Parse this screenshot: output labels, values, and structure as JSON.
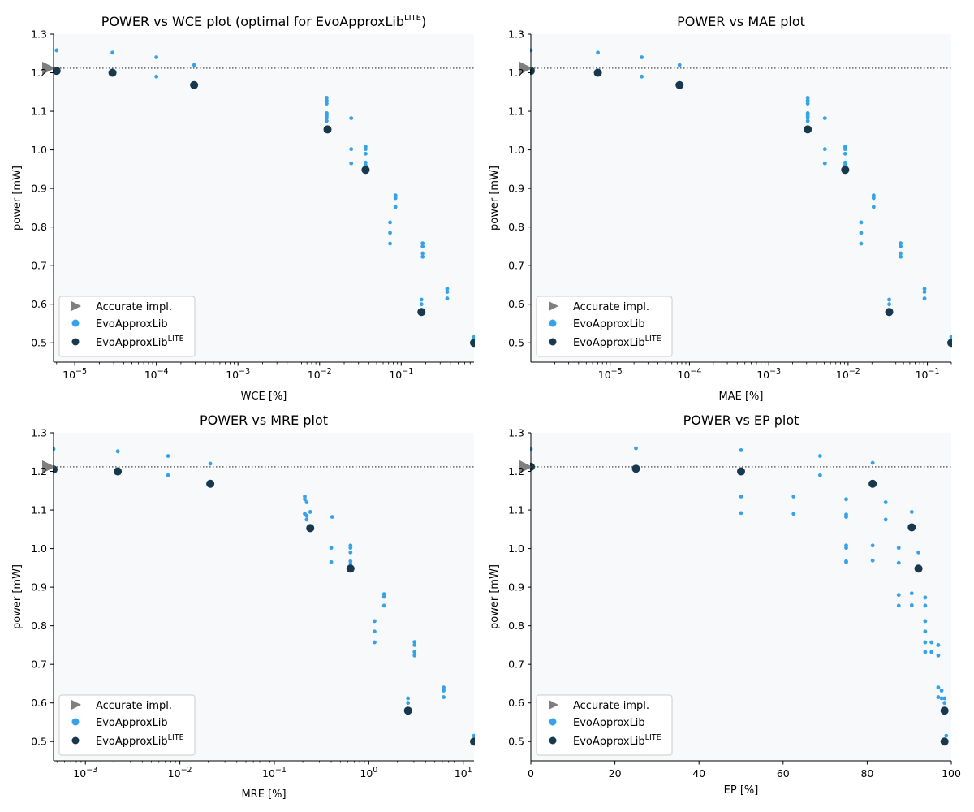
{
  "colors": {
    "accurate": "#7f7f7f",
    "library": "#35a2ea",
    "lite": "#17384d",
    "plot_bg": "#f7f9fb",
    "reference_line": "#666666"
  },
  "legend": {
    "accurate": "Accurate impl.",
    "library": "EvoApproxLib",
    "lite": "EvoApproxLib",
    "lite_sup": "LITE"
  },
  "chart_data": [
    {
      "id": "wce",
      "type": "scatter",
      "title": "POWER vs WCE plot (optimal for EvoApproxLib",
      "title_sup": "LITE",
      "title_tail": ")",
      "xlabel": "WCE [%]",
      "ylabel": "power [mW]",
      "xscale": "log",
      "xlim": [
        5.5e-06,
        0.78
      ],
      "ylim": [
        0.45,
        1.3
      ],
      "xticks": [
        1e-05,
        0.0001,
        0.001,
        0.01,
        0.1
      ],
      "xtick_labels": [
        [
          "10",
          "−5"
        ],
        [
          "10",
          "−4"
        ],
        [
          "10",
          "−3"
        ],
        [
          "10",
          "−2"
        ],
        [
          "10",
          "−1"
        ]
      ],
      "yticks": [
        "0.5",
        "0.6",
        "0.7",
        "0.8",
        "0.9",
        "1.0",
        "1.1",
        "1.2",
        "1.3"
      ],
      "reference_power": 1.212,
      "library": [
        [
          6e-06,
          1.258
        ],
        [
          2.9e-05,
          1.252
        ],
        [
          0.0001,
          1.24
        ],
        [
          0.0001,
          1.19
        ],
        [
          0.00029,
          1.22
        ],
        [
          0.0122,
          1.135
        ],
        [
          0.0122,
          1.128
        ],
        [
          0.0122,
          1.12
        ],
        [
          0.0122,
          1.095
        ],
        [
          0.0122,
          1.09
        ],
        [
          0.0122,
          1.085
        ],
        [
          0.0122,
          1.075
        ],
        [
          0.0244,
          1.082
        ],
        [
          0.0244,
          1.002
        ],
        [
          0.0244,
          0.965
        ],
        [
          0.0366,
          1.008
        ],
        [
          0.0366,
          1.002
        ],
        [
          0.0366,
          0.99
        ],
        [
          0.0366,
          0.967
        ],
        [
          0.0366,
          0.96
        ],
        [
          0.085,
          0.882
        ],
        [
          0.085,
          0.875
        ],
        [
          0.085,
          0.852
        ],
        [
          0.073,
          0.812
        ],
        [
          0.073,
          0.785
        ],
        [
          0.073,
          0.757
        ],
        [
          0.183,
          0.758
        ],
        [
          0.183,
          0.75
        ],
        [
          0.183,
          0.732
        ],
        [
          0.183,
          0.723
        ],
        [
          0.177,
          0.612
        ],
        [
          0.177,
          0.6
        ],
        [
          0.366,
          0.64
        ],
        [
          0.366,
          0.632
        ],
        [
          0.366,
          0.615
        ],
        [
          0.78,
          0.515
        ]
      ],
      "lite": [
        [
          6e-06,
          1.205
        ],
        [
          2.9e-05,
          1.2
        ],
        [
          0.00029,
          1.168
        ],
        [
          0.0125,
          1.053
        ],
        [
          0.0366,
          0.948
        ],
        [
          0.177,
          0.58
        ],
        [
          0.78,
          0.5
        ]
      ]
    },
    {
      "id": "mae",
      "type": "scatter",
      "title": "POWER vs MAE plot",
      "xlabel": "MAE [%]",
      "ylabel": "power [mW]",
      "xscale": "log",
      "xlim": [
        1e-06,
        0.2
      ],
      "ylim": [
        0.45,
        1.3
      ],
      "xticks": [
        1e-05,
        0.0001,
        0.001,
        0.01,
        0.1
      ],
      "xtick_labels": [
        [
          "10",
          "−5"
        ],
        [
          "10",
          "−4"
        ],
        [
          "10",
          "−3"
        ],
        [
          "10",
          "−2"
        ],
        [
          "10",
          "−1"
        ]
      ],
      "yticks": [
        "0.5",
        "0.6",
        "0.7",
        "0.8",
        "0.9",
        "1.0",
        "1.1",
        "1.2",
        "1.3"
      ],
      "reference_power": 1.212,
      "library": [
        [
          1e-06,
          1.258
        ],
        [
          7e-06,
          1.252
        ],
        [
          2.5e-05,
          1.24
        ],
        [
          2.5e-05,
          1.19
        ],
        [
          7.5e-05,
          1.22
        ],
        [
          0.0031,
          1.135
        ],
        [
          0.0031,
          1.128
        ],
        [
          0.0031,
          1.12
        ],
        [
          0.0031,
          1.095
        ],
        [
          0.0031,
          1.09
        ],
        [
          0.0031,
          1.085
        ],
        [
          0.0031,
          1.075
        ],
        [
          0.0051,
          1.082
        ],
        [
          0.0051,
          1.002
        ],
        [
          0.0051,
          0.965
        ],
        [
          0.0092,
          1.008
        ],
        [
          0.0092,
          1.002
        ],
        [
          0.0092,
          0.99
        ],
        [
          0.0092,
          0.967
        ],
        [
          0.0092,
          0.96
        ],
        [
          0.021,
          0.882
        ],
        [
          0.021,
          0.875
        ],
        [
          0.021,
          0.852
        ],
        [
          0.0146,
          0.812
        ],
        [
          0.0146,
          0.785
        ],
        [
          0.0146,
          0.757
        ],
        [
          0.046,
          0.758
        ],
        [
          0.046,
          0.75
        ],
        [
          0.046,
          0.732
        ],
        [
          0.046,
          0.723
        ],
        [
          0.033,
          0.612
        ],
        [
          0.033,
          0.6
        ],
        [
          0.092,
          0.64
        ],
        [
          0.092,
          0.632
        ],
        [
          0.092,
          0.615
        ],
        [
          0.2,
          0.515
        ]
      ],
      "lite": [
        [
          1e-06,
          1.205
        ],
        [
          7e-06,
          1.2
        ],
        [
          7.5e-05,
          1.168
        ],
        [
          0.0031,
          1.053
        ],
        [
          0.0092,
          0.948
        ],
        [
          0.033,
          0.58
        ],
        [
          0.2,
          0.5
        ]
      ]
    },
    {
      "id": "mre",
      "type": "scatter",
      "title": "POWER vs MRE plot",
      "xlabel": "MRE [%]",
      "ylabel": "power [mW]",
      "xscale": "log",
      "xlim": [
        0.00046,
        13
      ],
      "ylim": [
        0.45,
        1.3
      ],
      "xticks": [
        0.001,
        0.01,
        0.1,
        1,
        10
      ],
      "xtick_labels": [
        [
          "10",
          "−3"
        ],
        [
          "10",
          "−2"
        ],
        [
          "10",
          "−1"
        ],
        [
          "10",
          "0"
        ],
        [
          "10",
          "1"
        ]
      ],
      "yticks": [
        "0.5",
        "0.6",
        "0.7",
        "0.8",
        "0.9",
        "1.0",
        "1.1",
        "1.2",
        "1.3"
      ],
      "reference_power": 1.212,
      "library": [
        [
          0.00046,
          1.258
        ],
        [
          0.0022,
          1.252
        ],
        [
          0.0075,
          1.24
        ],
        [
          0.0075,
          1.19
        ],
        [
          0.021,
          1.22
        ],
        [
          0.21,
          1.135
        ],
        [
          0.21,
          1.128
        ],
        [
          0.22,
          1.12
        ],
        [
          0.24,
          1.095
        ],
        [
          0.21,
          1.09
        ],
        [
          0.22,
          1.085
        ],
        [
          0.22,
          1.075
        ],
        [
          0.41,
          1.082
        ],
        [
          0.4,
          1.002
        ],
        [
          0.4,
          0.965
        ],
        [
          0.64,
          1.008
        ],
        [
          0.64,
          1.002
        ],
        [
          0.64,
          0.99
        ],
        [
          0.64,
          0.967
        ],
        [
          0.64,
          0.96
        ],
        [
          1.45,
          0.882
        ],
        [
          1.45,
          0.875
        ],
        [
          1.45,
          0.852
        ],
        [
          1.15,
          0.812
        ],
        [
          1.15,
          0.785
        ],
        [
          1.15,
          0.757
        ],
        [
          3.05,
          0.758
        ],
        [
          3.05,
          0.75
        ],
        [
          3.05,
          0.732
        ],
        [
          3.05,
          0.723
        ],
        [
          2.6,
          0.612
        ],
        [
          2.6,
          0.6
        ],
        [
          6.2,
          0.64
        ],
        [
          6.2,
          0.632
        ],
        [
          6.2,
          0.615
        ],
        [
          13,
          0.515
        ]
      ],
      "lite": [
        [
          0.00046,
          1.205
        ],
        [
          0.0022,
          1.2
        ],
        [
          0.021,
          1.168
        ],
        [
          0.24,
          1.053
        ],
        [
          0.64,
          0.948
        ],
        [
          2.6,
          0.58
        ],
        [
          13,
          0.5
        ]
      ]
    },
    {
      "id": "ep",
      "type": "scatter",
      "title": "POWER vs EP plot",
      "xlabel": "EP [%]",
      "ylabel": "power [mW]",
      "xscale": "linear",
      "xlim": [
        0,
        100
      ],
      "ylim": [
        0.45,
        1.3
      ],
      "xticks": [
        0,
        20,
        40,
        60,
        80,
        100
      ],
      "xtick_labels": [
        [
          "0",
          ""
        ],
        [
          "20",
          ""
        ],
        [
          "40",
          ""
        ],
        [
          "60",
          ""
        ],
        [
          "80",
          ""
        ],
        [
          "100",
          ""
        ]
      ],
      "yticks": [
        "0.5",
        "0.6",
        "0.7",
        "0.8",
        "0.9",
        "1.0",
        "1.1",
        "1.2",
        "1.3"
      ],
      "reference_power": 1.212,
      "library": [
        [
          0,
          1.258
        ],
        [
          25,
          1.26
        ],
        [
          50,
          1.255
        ],
        [
          50,
          1.135
        ],
        [
          50,
          1.092
        ],
        [
          62.5,
          1.135
        ],
        [
          62.5,
          1.09
        ],
        [
          68.8,
          1.24
        ],
        [
          68.8,
          1.19
        ],
        [
          75,
          1.128
        ],
        [
          75,
          1.088
        ],
        [
          75,
          1.082
        ],
        [
          75,
          1.008
        ],
        [
          75,
          1.002
        ],
        [
          75,
          0.967
        ],
        [
          75,
          0.965
        ],
        [
          81.3,
          1.222
        ],
        [
          81.3,
          1.008
        ],
        [
          81.3,
          0.969
        ],
        [
          84.4,
          1.12
        ],
        [
          84.4,
          1.075
        ],
        [
          87.5,
          1.002
        ],
        [
          87.5,
          0.963
        ],
        [
          87.5,
          0.88
        ],
        [
          87.5,
          0.852
        ],
        [
          90.6,
          1.095
        ],
        [
          90.6,
          0.884
        ],
        [
          90.6,
          0.853
        ],
        [
          92.2,
          0.99
        ],
        [
          93.8,
          0.873
        ],
        [
          93.8,
          0.852
        ],
        [
          93.8,
          0.812
        ],
        [
          93.8,
          0.785
        ],
        [
          93.8,
          0.757
        ],
        [
          93.8,
          0.732
        ],
        [
          95.3,
          0.757
        ],
        [
          95.3,
          0.732
        ],
        [
          96.9,
          0.75
        ],
        [
          96.9,
          0.723
        ],
        [
          96.9,
          0.64
        ],
        [
          96.9,
          0.615
        ],
        [
          97.7,
          0.632
        ],
        [
          97.7,
          0.612
        ],
        [
          98.4,
          0.612
        ],
        [
          98.4,
          0.6
        ],
        [
          98.8,
          0.515
        ]
      ],
      "lite": [
        [
          0,
          1.212
        ],
        [
          25,
          1.207
        ],
        [
          50,
          1.2
        ],
        [
          81.3,
          1.168
        ],
        [
          90.6,
          1.055
        ],
        [
          92.2,
          0.948
        ],
        [
          98.4,
          0.58
        ],
        [
          98.4,
          0.5
        ]
      ]
    }
  ]
}
